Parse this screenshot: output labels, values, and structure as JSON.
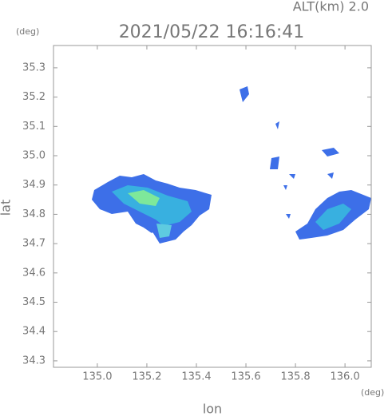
{
  "chart_data": {
    "type": "map",
    "title": "2021/05/22 16:16:41",
    "subtitle": "ALT(km) 2.0",
    "x_label": "lon",
    "y_label": "lat",
    "x_unit": "(deg)",
    "y_unit": "(deg)",
    "xlim": [
      134.823,
      136.106
    ],
    "ylim": [
      34.278,
      35.376
    ],
    "xticks": [
      {
        "value": 135,
        "label": "135.0"
      },
      135.2,
      135.4,
      135.6,
      135.8,
      {
        "value": 136,
        "label": "136.0"
      }
    ],
    "yticks": [
      34.3,
      34.4,
      34.5,
      34.6,
      34.7,
      34.8,
      34.9,
      {
        "value": 35,
        "label": "35.0"
      },
      35.1,
      35.2,
      35.3
    ]
  }
}
